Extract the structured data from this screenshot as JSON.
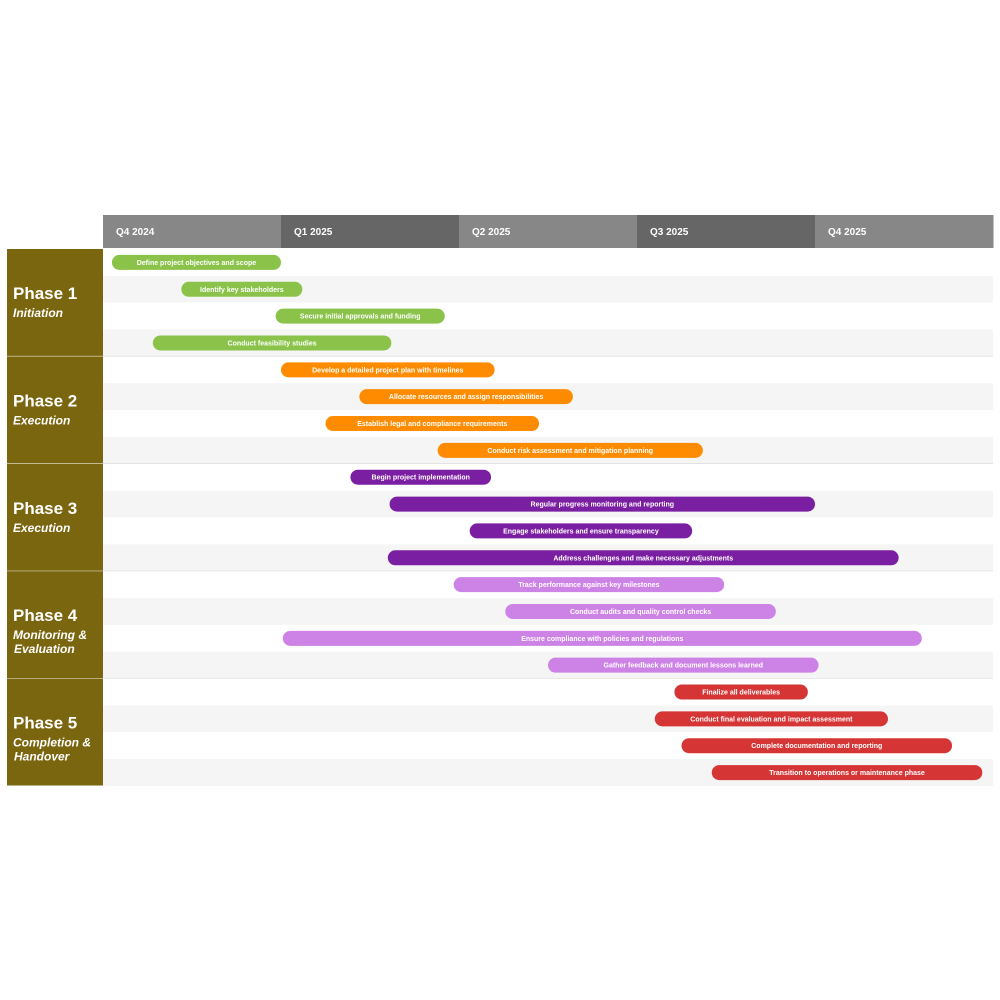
{
  "chart_data": {
    "type": "gantt",
    "quarters": [
      {
        "label": "Q4 2024",
        "color": "#878787"
      },
      {
        "label": "Q1 2025",
        "color": "#666666"
      },
      {
        "label": "Q2 2025",
        "color": "#878787"
      },
      {
        "label": "Q3 2025",
        "color": "#666666"
      },
      {
        "label": "Q4 2025",
        "color": "#878787"
      }
    ],
    "phase_color": "#7a660f",
    "phases": [
      {
        "title": "Phase 1",
        "subtitle": [
          "Initiation"
        ],
        "color": "#8bc34a",
        "tasks": [
          {
            "label": "Define project objectives and scope",
            "start": 0.05,
            "end": 1.0
          },
          {
            "label": "Identify key stakeholders",
            "start": 0.44,
            "end": 1.12
          },
          {
            "label": "Secure initial approvals and funding",
            "start": 0.97,
            "end": 1.92
          },
          {
            "label": "Conduct feasibility studies",
            "start": 0.28,
            "end": 1.62
          }
        ]
      },
      {
        "title": "Phase 2",
        "subtitle": [
          "Execution"
        ],
        "color": "#ff8c00",
        "tasks": [
          {
            "label": "Develop a detailed project plan with timelines",
            "start": 1.0,
            "end": 2.2
          },
          {
            "label": "Allocate resources and assign responsibilities",
            "start": 1.44,
            "end": 2.64
          },
          {
            "label": "Establish legal and compliance requirements",
            "start": 1.25,
            "end": 2.45
          },
          {
            "label": "Conduct risk assessment and mitigation planning",
            "start": 1.88,
            "end": 3.37
          }
        ]
      },
      {
        "title": "Phase 3",
        "subtitle": [
          "Execution"
        ],
        "color": "#7b1fa2",
        "tasks": [
          {
            "label": "Begin project implementation",
            "start": 1.39,
            "end": 2.18
          },
          {
            "label": "Regular progress monitoring and reporting",
            "start": 1.61,
            "end": 4.0
          },
          {
            "label": "Engage stakeholders and ensure transparency",
            "start": 2.06,
            "end": 3.31
          },
          {
            "label": "Address challenges and make necessary adjustments",
            "start": 1.6,
            "end": 4.47
          }
        ]
      },
      {
        "title": "Phase 4",
        "subtitle": [
          "Monitoring &",
          "Evaluation"
        ],
        "color": "#cd82e6",
        "tasks": [
          {
            "label": "Track performance against key milestones",
            "start": 1.97,
            "end": 3.49
          },
          {
            "label": "Conduct audits and quality control checks",
            "start": 2.26,
            "end": 3.78
          },
          {
            "label": "Ensure compliance with policies and regulations",
            "start": 1.01,
            "end": 4.6
          },
          {
            "label": "Gather feedback and document lessons learned",
            "start": 2.5,
            "end": 4.02
          }
        ]
      },
      {
        "title": "Phase 5",
        "subtitle": [
          "Completion &",
          "Handover"
        ],
        "color": "#d63535",
        "tasks": [
          {
            "label": "Finalize all deliverables",
            "start": 3.21,
            "end": 3.96
          },
          {
            "label": "Conduct final evaluation and impact assessment",
            "start": 3.1,
            "end": 4.41
          },
          {
            "label": "Complete documentation and reporting",
            "start": 3.25,
            "end": 4.77
          },
          {
            "label": "Transition to operations or maintenance phase",
            "start": 3.42,
            "end": 4.94
          }
        ]
      }
    ]
  }
}
